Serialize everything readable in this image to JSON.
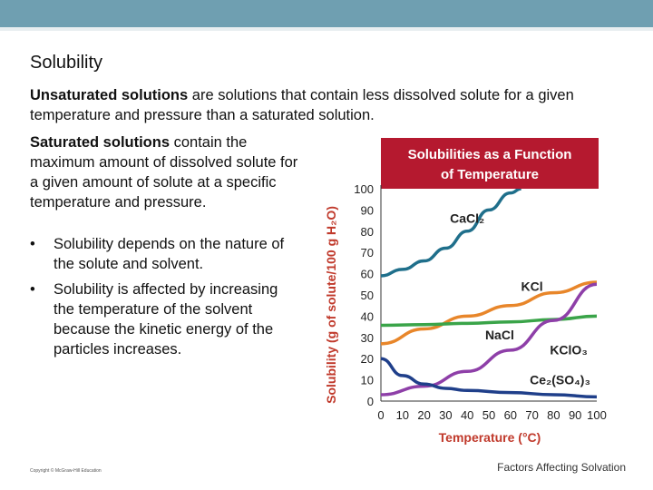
{
  "slide": {
    "title": "Solubility",
    "para1_bold": "Unsaturated solutions",
    "para1_rest": " are solutions that contain less dissolved solute for a given temperature and pressure than a saturated solution.",
    "para2_bold": "Saturated solutions",
    "para2_rest": " contain the maximum amount of dissolved solute for a given amount of solute at a specific temperature and pressure.",
    "bullets": [
      "Solubility depends on the nature of the solute and solvent.",
      "Solubility is affected by increasing the temperature of the solvent because the kinetic energy of the particles increases."
    ],
    "bullet_symbol": "•",
    "copyright": "Copyright © McGraw-Hill Education",
    "footer": "Factors Affecting Solvation"
  },
  "colors": {
    "header_band": "#6f9fb1",
    "chart_title_bg": "#b5192f",
    "axis_label": "#c0392b",
    "CaCl2": "#1f6f8b",
    "KCl": "#e8862a",
    "NaCl": "#3aa449",
    "KClO3": "#8e3fa8",
    "Ce2(SO4)3": "#1f3f8a"
  },
  "chart_data": {
    "type": "line",
    "title_line1": "Solubilities as a Function",
    "title_line2": "of Temperature",
    "xlabel": "Temperature (°C)",
    "ylabel": "Solubility (g of solute/100 g H₂O)",
    "xlim": [
      0,
      100
    ],
    "ylim": [
      0,
      100
    ],
    "xticks": [
      0,
      10,
      20,
      30,
      40,
      50,
      60,
      70,
      80,
      90,
      100
    ],
    "yticks": [
      0,
      10,
      20,
      30,
      40,
      50,
      60,
      70,
      80,
      90,
      100
    ],
    "grid": false,
    "series": [
      {
        "name": "CaCl₂",
        "color_key": "CaCl2",
        "x": [
          0,
          10,
          20,
          30,
          40,
          50,
          60,
          65
        ],
        "y": [
          59,
          62,
          66,
          72,
          80,
          90,
          98,
          100
        ]
      },
      {
        "name": "KCl",
        "color_key": "KCl",
        "x": [
          0,
          20,
          40,
          60,
          80,
          100
        ],
        "y": [
          27,
          34,
          40,
          45,
          51,
          56
        ]
      },
      {
        "name": "NaCl",
        "color_key": "NaCl",
        "x": [
          0,
          20,
          40,
          60,
          80,
          100
        ],
        "y": [
          35.7,
          36,
          36.6,
          37.3,
          38.4,
          40
        ]
      },
      {
        "name": "KClO₃",
        "color_key": "KClO3",
        "x": [
          0,
          20,
          40,
          60,
          80,
          100
        ],
        "y": [
          3,
          7,
          14,
          24,
          38,
          55
        ]
      },
      {
        "name": "Ce₂(SO₄)₃",
        "color_key": "Ce2(SO4)3",
        "x": [
          0,
          10,
          20,
          30,
          40,
          60,
          80,
          100
        ],
        "y": [
          20,
          12,
          8,
          6,
          5,
          4,
          3,
          2
        ]
      }
    ]
  }
}
